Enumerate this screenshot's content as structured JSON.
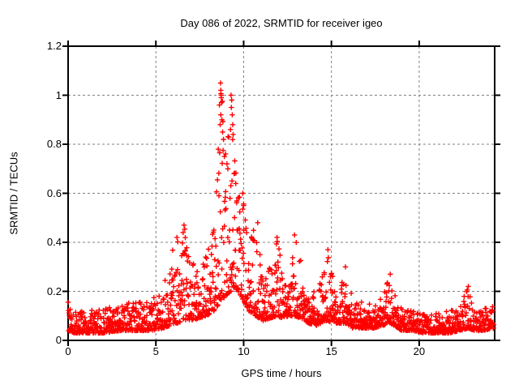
{
  "chart_data": {
    "type": "scatter",
    "title": "Day 086 of 2022, SRMTID for receiver igeo",
    "xlabel": "GPS time / hours",
    "ylabel": "SRMTID / TECUs",
    "xlim": [
      0,
      24.3
    ],
    "ylim": [
      0,
      1.2
    ],
    "xticks": [
      0,
      5,
      10,
      15,
      20
    ],
    "xtick_labels": [
      "0",
      "5",
      "10",
      "15",
      "20"
    ],
    "yticks": [
      0,
      0.2,
      0.4,
      0.6,
      0.8,
      1.0,
      1.2
    ],
    "ytick_labels": [
      "0",
      "0.2",
      "0.4",
      "0.6",
      "0.8",
      "1",
      "1.2"
    ],
    "grid": true,
    "legend": "none",
    "marker": "plus",
    "marker_color": "#ff0000",
    "grid_color": "#808080",
    "axis_color": "#000000",
    "background_color": "#ffffff",
    "points_per_hour": 75,
    "seed": 86,
    "value_skew": 2.2,
    "series_name": "SRMTID",
    "envelope_points_t_lo_hi": [
      [
        0.0,
        0.04,
        0.17
      ],
      [
        0.3,
        0.03,
        0.13
      ],
      [
        1.0,
        0.03,
        0.12
      ],
      [
        2.0,
        0.03,
        0.13
      ],
      [
        3.0,
        0.04,
        0.15
      ],
      [
        4.0,
        0.04,
        0.16
      ],
      [
        4.8,
        0.04,
        0.17
      ],
      [
        5.4,
        0.05,
        0.22
      ],
      [
        5.8,
        0.06,
        0.33
      ],
      [
        6.2,
        0.07,
        0.44
      ],
      [
        6.6,
        0.08,
        0.48
      ],
      [
        7.0,
        0.08,
        0.36
      ],
      [
        7.4,
        0.09,
        0.3
      ],
      [
        7.9,
        0.1,
        0.35
      ],
      [
        8.3,
        0.12,
        0.46
      ],
      [
        8.6,
        0.15,
        0.97
      ],
      [
        8.8,
        0.17,
        1.06
      ],
      [
        9.0,
        0.18,
        0.8
      ],
      [
        9.3,
        0.2,
        1.0
      ],
      [
        9.5,
        0.22,
        0.9
      ],
      [
        9.7,
        0.2,
        0.62
      ],
      [
        10.0,
        0.16,
        0.58
      ],
      [
        10.3,
        0.12,
        0.48
      ],
      [
        10.7,
        0.1,
        0.45
      ],
      [
        11.1,
        0.08,
        0.28
      ],
      [
        11.5,
        0.09,
        0.3
      ],
      [
        11.9,
        0.1,
        0.42
      ],
      [
        12.2,
        0.09,
        0.3
      ],
      [
        12.6,
        0.1,
        0.35
      ],
      [
        12.9,
        0.1,
        0.43
      ],
      [
        13.3,
        0.09,
        0.32
      ],
      [
        13.7,
        0.07,
        0.2
      ],
      [
        14.2,
        0.06,
        0.2
      ],
      [
        14.6,
        0.08,
        0.3
      ],
      [
        14.8,
        0.08,
        0.37
      ],
      [
        15.1,
        0.07,
        0.25
      ],
      [
        15.5,
        0.07,
        0.22
      ],
      [
        15.8,
        0.07,
        0.3
      ],
      [
        16.2,
        0.05,
        0.18
      ],
      [
        16.6,
        0.05,
        0.15
      ],
      [
        16.9,
        0.05,
        0.17
      ],
      [
        17.4,
        0.05,
        0.14
      ],
      [
        17.9,
        0.06,
        0.18
      ],
      [
        18.3,
        0.07,
        0.27
      ],
      [
        18.6,
        0.06,
        0.2
      ],
      [
        19.0,
        0.04,
        0.13
      ],
      [
        19.6,
        0.04,
        0.12
      ],
      [
        20.3,
        0.03,
        0.11
      ],
      [
        21.0,
        0.03,
        0.11
      ],
      [
        21.7,
        0.03,
        0.12
      ],
      [
        22.3,
        0.04,
        0.14
      ],
      [
        22.8,
        0.05,
        0.22
      ],
      [
        23.1,
        0.04,
        0.13
      ],
      [
        23.6,
        0.04,
        0.13
      ],
      [
        24.25,
        0.05,
        0.14
      ]
    ],
    "explicit_points_t_v": [
      [
        8.62,
        0.96
      ],
      [
        8.68,
        1.05
      ],
      [
        8.7,
        1.02
      ],
      [
        8.72,
        1.0
      ],
      [
        8.74,
        0.97
      ],
      [
        8.7,
        0.92
      ],
      [
        8.76,
        0.9
      ],
      [
        8.66,
        0.88
      ],
      [
        8.8,
        0.85
      ],
      [
        8.85,
        0.82
      ],
      [
        9.28,
        1.0
      ],
      [
        9.32,
        0.98
      ],
      [
        9.3,
        0.95
      ],
      [
        9.35,
        0.92
      ],
      [
        9.38,
        0.88
      ],
      [
        9.25,
        0.86
      ],
      [
        9.4,
        0.84
      ],
      [
        8.55,
        0.78
      ],
      [
        8.9,
        0.75
      ],
      [
        9.05,
        0.72
      ],
      [
        9.1,
        0.7
      ],
      [
        9.45,
        0.68
      ],
      [
        9.55,
        0.64
      ],
      [
        6.6,
        0.47
      ],
      [
        6.55,
        0.44
      ],
      [
        6.2,
        0.42
      ],
      [
        9.95,
        0.6
      ],
      [
        10.0,
        0.55
      ],
      [
        10.8,
        0.48
      ],
      [
        8.3,
        0.45
      ],
      [
        11.9,
        0.42
      ],
      [
        12.9,
        0.43
      ],
      [
        14.8,
        0.37
      ],
      [
        15.8,
        0.3
      ],
      [
        18.35,
        0.27
      ],
      [
        22.8,
        0.22
      ]
    ]
  }
}
